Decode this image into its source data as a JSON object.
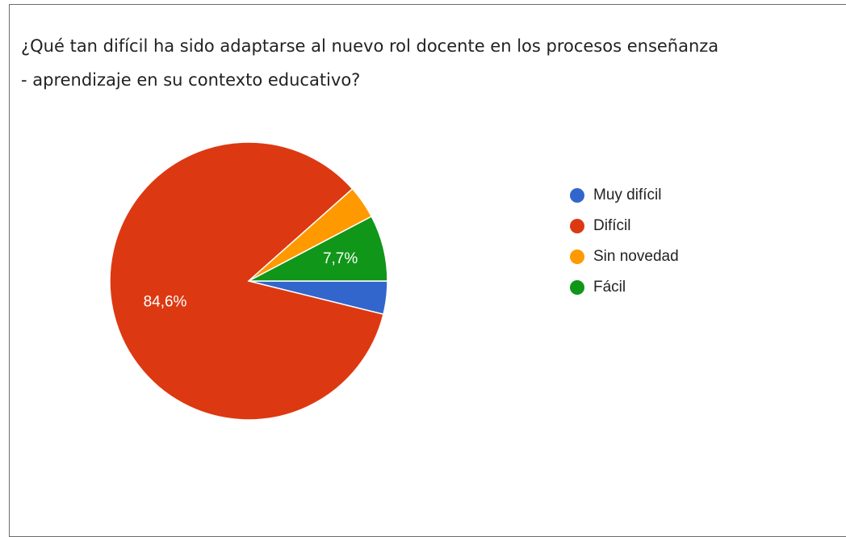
{
  "chart_data": {
    "type": "pie",
    "title": "¿Qué tan difícil ha sido adaptarse al nuevo rol docente en los procesos enseñanza - aprendizaje en su contexto educativo?",
    "title_lines": [
      "¿Qué tan difícil ha sido adaptarse al nuevo rol docente en los procesos enseñanza",
      "- aprendizaje en su contexto educativo?"
    ],
    "categories": [
      "Muy difícil",
      "Difícil",
      "Sin novedad",
      "Fácil"
    ],
    "values": [
      3.85,
      84.6,
      3.85,
      7.7
    ],
    "unit": "%",
    "colors": [
      "#3366cc",
      "#dc3912",
      "#ff9900",
      "#109618"
    ],
    "data_labels": [
      "",
      "84,6%",
      "",
      "7,7%"
    ],
    "legend_position": "right"
  }
}
